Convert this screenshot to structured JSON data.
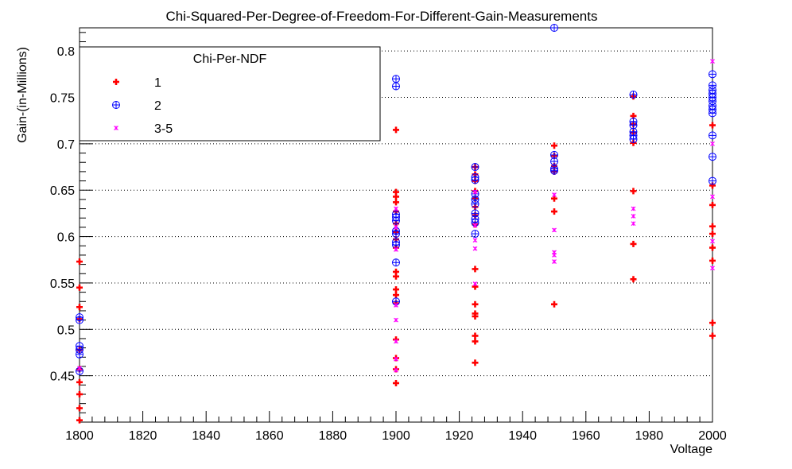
{
  "chart_data": {
    "type": "scatter",
    "title": "Chi-Squared-Per-Degree-of-Freedom-For-Different-Gain-Measurements",
    "xlabel": "Voltage",
    "ylabel": "Gain-(in-Millions)",
    "xlim": [
      1800,
      2000
    ],
    "ylim": [
      0.4,
      0.825
    ],
    "x_ticks": [
      1800,
      1820,
      1840,
      1860,
      1880,
      1900,
      1920,
      1940,
      1960,
      1980,
      2000
    ],
    "y_ticks": [
      0.45,
      0.5,
      0.55,
      0.6,
      0.65,
      0.7,
      0.75,
      0.8
    ],
    "y_tick_labels": [
      "0.45",
      "0.5",
      "0.55",
      "0.6",
      "0.65",
      "0.7",
      "0.75",
      "0.8"
    ],
    "grid": "horizontal-dotted",
    "legend": {
      "title": "Chi-Per-NDF",
      "placement": "top-left",
      "entries": [
        "1",
        "2",
        "3-5"
      ]
    },
    "series": [
      {
        "name": "1",
        "marker": "cross",
        "color": "#ff0000",
        "points": [
          [
            1800,
            0.573
          ],
          [
            1800,
            0.545
          ],
          [
            1800,
            0.524
          ],
          [
            1800,
            0.511
          ],
          [
            1800,
            0.478
          ],
          [
            1800,
            0.457
          ],
          [
            1800,
            0.443
          ],
          [
            1800,
            0.43
          ],
          [
            1800,
            0.415
          ],
          [
            1800,
            0.402
          ],
          [
            1900,
            0.715
          ],
          [
            1900,
            0.648
          ],
          [
            1900,
            0.643
          ],
          [
            1900,
            0.637
          ],
          [
            1900,
            0.627
          ],
          [
            1900,
            0.614
          ],
          [
            1900,
            0.605
          ],
          [
            1900,
            0.597
          ],
          [
            1900,
            0.588
          ],
          [
            1900,
            0.562
          ],
          [
            1900,
            0.557
          ],
          [
            1900,
            0.543
          ],
          [
            1900,
            0.537
          ],
          [
            1900,
            0.528
          ],
          [
            1900,
            0.489
          ],
          [
            1900,
            0.469
          ],
          [
            1900,
            0.457
          ],
          [
            1900,
            0.442
          ],
          [
            1925,
            0.675
          ],
          [
            1925,
            0.667
          ],
          [
            1925,
            0.66
          ],
          [
            1925,
            0.649
          ],
          [
            1925,
            0.641
          ],
          [
            1925,
            0.632
          ],
          [
            1925,
            0.623
          ],
          [
            1925,
            0.613
          ],
          [
            1925,
            0.565
          ],
          [
            1925,
            0.546
          ],
          [
            1925,
            0.527
          ],
          [
            1925,
            0.517
          ],
          [
            1925,
            0.514
          ],
          [
            1925,
            0.493
          ],
          [
            1925,
            0.487
          ],
          [
            1925,
            0.464
          ],
          [
            1950,
            0.698
          ],
          [
            1950,
            0.687
          ],
          [
            1950,
            0.676
          ],
          [
            1950,
            0.67
          ],
          [
            1950,
            0.641
          ],
          [
            1950,
            0.627
          ],
          [
            1950,
            0.527
          ],
          [
            1975,
            0.751
          ],
          [
            1975,
            0.73
          ],
          [
            1975,
            0.721
          ],
          [
            1975,
            0.712
          ],
          [
            1975,
            0.701
          ],
          [
            1975,
            0.649
          ],
          [
            1975,
            0.592
          ],
          [
            1975,
            0.554
          ],
          [
            2000,
            0.72
          ],
          [
            2000,
            0.655
          ],
          [
            2000,
            0.634
          ],
          [
            2000,
            0.611
          ],
          [
            2000,
            0.603
          ],
          [
            2000,
            0.588
          ],
          [
            2000,
            0.574
          ],
          [
            2000,
            0.507
          ],
          [
            2000,
            0.493
          ]
        ]
      },
      {
        "name": "2",
        "marker": "circle-plus",
        "color": "#0000ff",
        "points": [
          [
            1800,
            0.513
          ],
          [
            1800,
            0.51
          ],
          [
            1800,
            0.482
          ],
          [
            1800,
            0.478
          ],
          [
            1800,
            0.473
          ],
          [
            1800,
            0.455
          ],
          [
            1900,
            0.77
          ],
          [
            1900,
            0.762
          ],
          [
            1900,
            0.624
          ],
          [
            1900,
            0.621
          ],
          [
            1900,
            0.617
          ],
          [
            1900,
            0.606
          ],
          [
            1900,
            0.603
          ],
          [
            1900,
            0.594
          ],
          [
            1900,
            0.591
          ],
          [
            1900,
            0.572
          ],
          [
            1900,
            0.53
          ],
          [
            1925,
            0.675
          ],
          [
            1925,
            0.664
          ],
          [
            1925,
            0.661
          ],
          [
            1925,
            0.646
          ],
          [
            1925,
            0.64
          ],
          [
            1925,
            0.635
          ],
          [
            1925,
            0.625
          ],
          [
            1925,
            0.619
          ],
          [
            1925,
            0.615
          ],
          [
            1925,
            0.603
          ],
          [
            1950,
            0.825
          ],
          [
            1950,
            0.688
          ],
          [
            1950,
            0.681
          ],
          [
            1950,
            0.673
          ],
          [
            1950,
            0.671
          ],
          [
            1975,
            0.753
          ],
          [
            1975,
            0.724
          ],
          [
            1975,
            0.72
          ],
          [
            1975,
            0.713
          ],
          [
            1975,
            0.709
          ],
          [
            1975,
            0.705
          ],
          [
            2000,
            0.775
          ],
          [
            2000,
            0.763
          ],
          [
            2000,
            0.758
          ],
          [
            2000,
            0.754
          ],
          [
            2000,
            0.75
          ],
          [
            2000,
            0.746
          ],
          [
            2000,
            0.741
          ],
          [
            2000,
            0.737
          ],
          [
            2000,
            0.733
          ],
          [
            2000,
            0.709
          ],
          [
            2000,
            0.686
          ],
          [
            2000,
            0.66
          ]
        ]
      },
      {
        "name": "3-5",
        "marker": "star",
        "color": "#ff00ff",
        "points": [
          [
            1800,
            0.458
          ],
          [
            1900,
            0.63
          ],
          [
            1900,
            0.61
          ],
          [
            1900,
            0.586
          ],
          [
            1900,
            0.526
          ],
          [
            1900,
            0.51
          ],
          [
            1900,
            0.487
          ],
          [
            1900,
            0.468
          ],
          [
            1900,
            0.456
          ],
          [
            1925,
            0.648
          ],
          [
            1925,
            0.612
          ],
          [
            1925,
            0.596
          ],
          [
            1925,
            0.587
          ],
          [
            1925,
            0.549
          ],
          [
            1950,
            0.645
          ],
          [
            1950,
            0.607
          ],
          [
            1950,
            0.583
          ],
          [
            1950,
            0.58
          ],
          [
            1950,
            0.573
          ],
          [
            1975,
            0.63
          ],
          [
            1975,
            0.622
          ],
          [
            1975,
            0.614
          ],
          [
            2000,
            0.789
          ],
          [
            2000,
            0.7
          ],
          [
            2000,
            0.643
          ],
          [
            2000,
            0.595
          ],
          [
            2000,
            0.566
          ]
        ]
      }
    ]
  }
}
